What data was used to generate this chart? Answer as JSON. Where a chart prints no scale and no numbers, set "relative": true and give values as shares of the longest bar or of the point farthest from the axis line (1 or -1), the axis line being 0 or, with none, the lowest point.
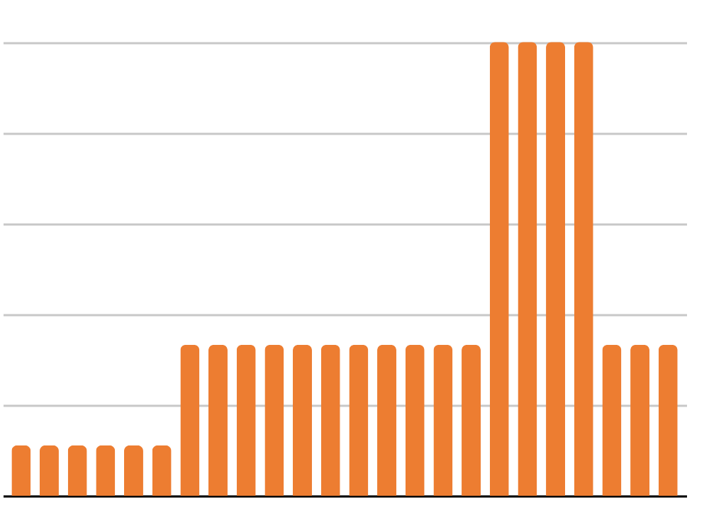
{
  "chart_data": {
    "type": "bar",
    "relative": true,
    "grid": "y",
    "categories": [
      null,
      null,
      null,
      null,
      null,
      null,
      null,
      null,
      null,
      null,
      null,
      null,
      null,
      null,
      null,
      null,
      null,
      null,
      null,
      null,
      null,
      null,
      null,
      null
    ],
    "values": [
      0.111,
      0.111,
      0.111,
      0.111,
      0.111,
      0.111,
      0.333,
      0.333,
      0.333,
      0.333,
      0.333,
      0.333,
      0.333,
      0.333,
      0.333,
      0.333,
      0.333,
      1,
      1,
      1,
      1,
      0.333,
      0.333,
      0.333
    ],
    "color": "#ed7d31"
  }
}
